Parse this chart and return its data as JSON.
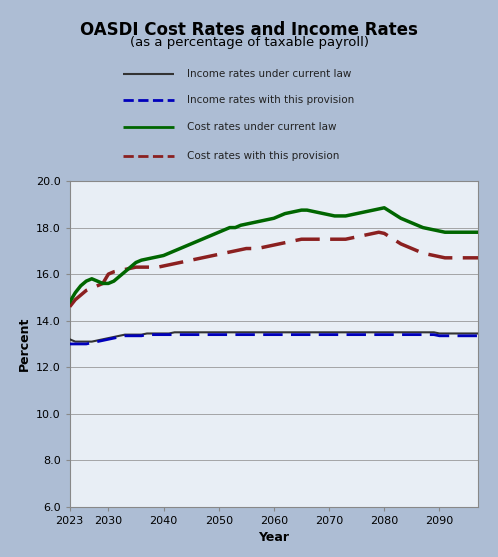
{
  "title": "OASDI Cost Rates and Income Rates",
  "subtitle": "(as a percentage of taxable payroll)",
  "xlabel": "Year",
  "ylabel": "Percent",
  "bg_color": "#adbdd4",
  "plot_bg_color": "#e8eef5",
  "ylim": [
    6.0,
    20.0
  ],
  "yticks": [
    6.0,
    8.0,
    10.0,
    12.0,
    14.0,
    16.0,
    18.0,
    20.0
  ],
  "xlim": [
    2023,
    2097
  ],
  "xticks": [
    2023,
    2030,
    2040,
    2050,
    2060,
    2070,
    2080,
    2090
  ],
  "years": [
    2023,
    2024,
    2025,
    2026,
    2027,
    2028,
    2029,
    2030,
    2031,
    2032,
    2033,
    2034,
    2035,
    2036,
    2037,
    2038,
    2039,
    2040,
    2041,
    2042,
    2043,
    2044,
    2045,
    2046,
    2047,
    2048,
    2049,
    2050,
    2051,
    2052,
    2053,
    2054,
    2055,
    2056,
    2057,
    2058,
    2059,
    2060,
    2061,
    2062,
    2063,
    2064,
    2065,
    2066,
    2067,
    2068,
    2069,
    2070,
    2071,
    2072,
    2073,
    2074,
    2075,
    2076,
    2077,
    2078,
    2079,
    2080,
    2081,
    2082,
    2083,
    2084,
    2085,
    2086,
    2087,
    2088,
    2089,
    2090,
    2091,
    2092,
    2093,
    2094,
    2095,
    2096,
    2097
  ],
  "income_current_law": [
    13.2,
    13.1,
    13.1,
    13.1,
    13.1,
    13.15,
    13.2,
    13.25,
    13.3,
    13.35,
    13.4,
    13.4,
    13.4,
    13.4,
    13.45,
    13.45,
    13.45,
    13.45,
    13.45,
    13.5,
    13.5,
    13.5,
    13.5,
    13.5,
    13.5,
    13.5,
    13.5,
    13.5,
    13.5,
    13.5,
    13.5,
    13.5,
    13.5,
    13.5,
    13.5,
    13.5,
    13.5,
    13.5,
    13.5,
    13.5,
    13.5,
    13.5,
    13.5,
    13.5,
    13.5,
    13.5,
    13.5,
    13.5,
    13.5,
    13.5,
    13.5,
    13.5,
    13.5,
    13.5,
    13.5,
    13.5,
    13.5,
    13.5,
    13.5,
    13.5,
    13.5,
    13.5,
    13.5,
    13.5,
    13.5,
    13.5,
    13.5,
    13.45,
    13.45,
    13.45,
    13.45,
    13.45,
    13.45,
    13.45,
    13.45
  ],
  "income_provision": [
    13.0,
    13.0,
    13.0,
    13.0,
    13.05,
    13.1,
    13.15,
    13.2,
    13.25,
    13.3,
    13.35,
    13.35,
    13.35,
    13.35,
    13.4,
    13.4,
    13.4,
    13.4,
    13.4,
    13.4,
    13.4,
    13.4,
    13.4,
    13.4,
    13.4,
    13.4,
    13.4,
    13.4,
    13.4,
    13.4,
    13.4,
    13.4,
    13.4,
    13.4,
    13.4,
    13.4,
    13.4,
    13.4,
    13.4,
    13.4,
    13.4,
    13.4,
    13.4,
    13.4,
    13.4,
    13.4,
    13.4,
    13.4,
    13.4,
    13.4,
    13.4,
    13.4,
    13.4,
    13.4,
    13.4,
    13.4,
    13.4,
    13.4,
    13.4,
    13.4,
    13.4,
    13.4,
    13.4,
    13.4,
    13.4,
    13.4,
    13.4,
    13.35,
    13.35,
    13.35,
    13.35,
    13.35,
    13.35,
    13.35,
    13.35
  ],
  "cost_current_law": [
    14.8,
    15.2,
    15.5,
    15.7,
    15.8,
    15.7,
    15.6,
    15.6,
    15.7,
    15.9,
    16.1,
    16.3,
    16.5,
    16.6,
    16.65,
    16.7,
    16.75,
    16.8,
    16.9,
    17.0,
    17.1,
    17.2,
    17.3,
    17.4,
    17.5,
    17.6,
    17.7,
    17.8,
    17.9,
    18.0,
    18.0,
    18.1,
    18.15,
    18.2,
    18.25,
    18.3,
    18.35,
    18.4,
    18.5,
    18.6,
    18.65,
    18.7,
    18.75,
    18.75,
    18.7,
    18.65,
    18.6,
    18.55,
    18.5,
    18.5,
    18.5,
    18.55,
    18.6,
    18.65,
    18.7,
    18.75,
    18.8,
    18.85,
    18.7,
    18.55,
    18.4,
    18.3,
    18.2,
    18.1,
    18.0,
    17.95,
    17.9,
    17.85,
    17.8,
    17.8,
    17.8,
    17.8,
    17.8,
    17.8,
    17.8
  ],
  "cost_provision": [
    14.6,
    14.9,
    15.1,
    15.3,
    15.4,
    15.5,
    15.6,
    16.0,
    16.1,
    16.15,
    16.2,
    16.25,
    16.3,
    16.3,
    16.3,
    16.3,
    16.3,
    16.35,
    16.4,
    16.45,
    16.5,
    16.55,
    16.6,
    16.65,
    16.7,
    16.75,
    16.8,
    16.85,
    16.9,
    16.95,
    17.0,
    17.05,
    17.1,
    17.1,
    17.1,
    17.15,
    17.2,
    17.25,
    17.3,
    17.35,
    17.4,
    17.45,
    17.5,
    17.5,
    17.5,
    17.5,
    17.5,
    17.5,
    17.5,
    17.5,
    17.5,
    17.55,
    17.6,
    17.65,
    17.7,
    17.75,
    17.8,
    17.75,
    17.6,
    17.45,
    17.3,
    17.2,
    17.1,
    17.0,
    16.9,
    16.85,
    16.8,
    16.75,
    16.7,
    16.7,
    16.7,
    16.7,
    16.7,
    16.7,
    16.7
  ],
  "legend_labels": [
    "Income rates under current law",
    "Income rates with this provision",
    "Cost rates under current law",
    "Cost rates with this provision"
  ],
  "legend_colors": [
    "#333333",
    "#0000bb",
    "#006600",
    "#8b2020"
  ],
  "legend_styles": [
    "solid",
    "dashed",
    "solid",
    "dashed"
  ]
}
